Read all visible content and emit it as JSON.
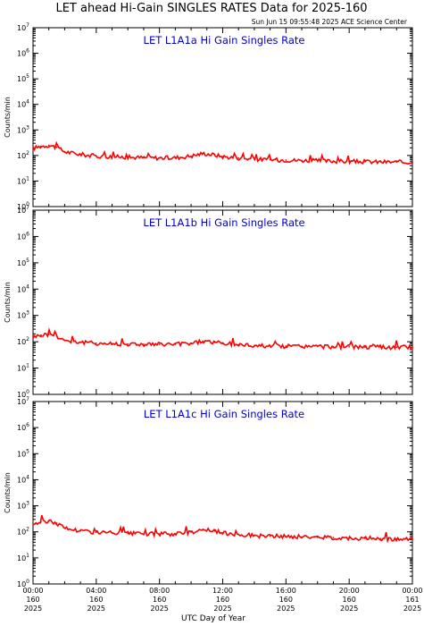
{
  "page": {
    "title": "LET ahead Hi-Gain SINGLES RATES Data for 2025-160",
    "timestamp": "Sun Jun 15 09:55:48 2025 ACE Science Center",
    "xlabel": "UTC Day of Year"
  },
  "colors": {
    "series": "#ff0000",
    "panel_label": "#0000cc",
    "axis": "#000000"
  },
  "chart_data": [
    {
      "type": "line",
      "title": "LET L1A1a Hi Gain Singles Rate",
      "ylabel": "Counts/min",
      "yscale": "log",
      "ylim": [
        1,
        10000000
      ],
      "y_tick_labels": [
        {
          "base": "10",
          "exp": "0"
        },
        {
          "base": "10",
          "exp": "1"
        },
        {
          "base": "10",
          "exp": "2"
        },
        {
          "base": "10",
          "exp": "3"
        },
        {
          "base": "10",
          "exp": "4"
        },
        {
          "base": "10",
          "exp": "5"
        },
        {
          "base": "10",
          "exp": "6"
        },
        {
          "base": "10",
          "exp": "7"
        }
      ],
      "xlim": [
        0,
        24
      ],
      "series": [
        {
          "x": [
            0,
            0.5,
            1,
            1.5,
            2,
            3,
            4,
            5,
            6,
            7,
            8,
            9,
            10,
            10.75,
            11.5,
            12,
            13,
            14,
            15,
            16,
            17,
            18,
            19,
            20,
            21,
            22,
            23,
            24
          ],
          "values": [
            190,
            230,
            250,
            210,
            140,
            110,
            95,
            90,
            85,
            82,
            80,
            82,
            95,
            120,
            105,
            90,
            80,
            72,
            68,
            66,
            64,
            62,
            60,
            58,
            57,
            56,
            55,
            54
          ]
        }
      ]
    },
    {
      "type": "line",
      "title": "LET L1A1b Hi Gain Singles Rate",
      "ylabel": "Counts/min",
      "yscale": "log",
      "ylim": [
        1,
        10000000
      ],
      "y_tick_labels": [
        {
          "base": "10",
          "exp": "0"
        },
        {
          "base": "10",
          "exp": "1"
        },
        {
          "base": "10",
          "exp": "2"
        },
        {
          "base": "10",
          "exp": "3"
        },
        {
          "base": "10",
          "exp": "4"
        },
        {
          "base": "10",
          "exp": "5"
        },
        {
          "base": "10",
          "exp": "6"
        },
        {
          "base": "10",
          "exp": "7"
        }
      ],
      "xlim": [
        0,
        24
      ],
      "series": [
        {
          "x": [
            0,
            0.5,
            1,
            1.5,
            2,
            3,
            4,
            5,
            6,
            7,
            8,
            9,
            10,
            10.75,
            11.5,
            12,
            13,
            14,
            15,
            16,
            17,
            18,
            19,
            20,
            21,
            22,
            23,
            24
          ],
          "values": [
            150,
            180,
            190,
            165,
            115,
            95,
            88,
            84,
            82,
            80,
            79,
            80,
            88,
            105,
            95,
            85,
            78,
            72,
            70,
            68,
            67,
            66,
            65,
            64,
            63,
            62,
            62,
            61
          ]
        }
      ]
    },
    {
      "type": "line",
      "title": "LET L1A1c Hi Gain Singles Rate",
      "ylabel": "Counts/min",
      "yscale": "log",
      "ylim": [
        1,
        10000000
      ],
      "y_tick_labels": [
        {
          "base": "10",
          "exp": "0"
        },
        {
          "base": "10",
          "exp": "1"
        },
        {
          "base": "10",
          "exp": "2"
        },
        {
          "base": "10",
          "exp": "3"
        },
        {
          "base": "10",
          "exp": "4"
        },
        {
          "base": "10",
          "exp": "5"
        },
        {
          "base": "10",
          "exp": "6"
        },
        {
          "base": "10",
          "exp": "7"
        }
      ],
      "xlim": [
        0,
        24
      ],
      "series": [
        {
          "x": [
            0,
            0.5,
            1,
            1.5,
            2,
            3,
            4,
            5,
            6,
            7,
            8,
            9,
            10,
            10.75,
            11.5,
            12,
            13,
            14,
            15,
            16,
            17,
            18,
            19,
            20,
            21,
            22,
            23,
            24
          ],
          "values": [
            200,
            240,
            260,
            215,
            140,
            110,
            96,
            90,
            86,
            83,
            82,
            84,
            98,
            125,
            108,
            90,
            80,
            72,
            68,
            66,
            64,
            62,
            60,
            58,
            56,
            55,
            53,
            52
          ]
        }
      ]
    }
  ],
  "x_ticks": [
    {
      "x": 0,
      "time": "00:00",
      "day": "160",
      "year": "2025"
    },
    {
      "x": 4,
      "time": "04:00",
      "day": "160",
      "year": "2025"
    },
    {
      "x": 8,
      "time": "08:00",
      "day": "160",
      "year": "2025"
    },
    {
      "x": 12,
      "time": "12:00",
      "day": "160",
      "year": "2025"
    },
    {
      "x": 16,
      "time": "16:00",
      "day": "160",
      "year": "2025"
    },
    {
      "x": 20,
      "time": "20:00",
      "day": "160",
      "year": "2025"
    },
    {
      "x": 24,
      "time": "00:00",
      "day": "161",
      "year": "2025"
    }
  ]
}
